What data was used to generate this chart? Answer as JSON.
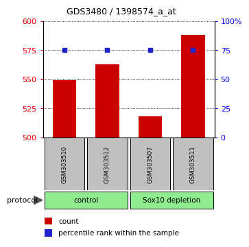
{
  "title": "GDS3480 / 1398574_a_at",
  "samples": [
    "GSM303510",
    "GSM303512",
    "GSM303507",
    "GSM303511"
  ],
  "bar_values": [
    549,
    563,
    518,
    588
  ],
  "percentile_values": [
    75,
    75,
    75,
    75
  ],
  "bar_color": "#cc0000",
  "dot_color": "#2222cc",
  "ylim_left": [
    500,
    600
  ],
  "ylim_right": [
    0,
    100
  ],
  "yticks_left": [
    500,
    525,
    550,
    575,
    600
  ],
  "yticks_right": [
    0,
    25,
    50,
    75,
    100
  ],
  "ytick_labels_right": [
    "0",
    "25",
    "50",
    "75",
    "100%"
  ],
  "groups": [
    {
      "label": "control",
      "indices": [
        0,
        1
      ]
    },
    {
      "label": "Sox10 depletion",
      "indices": [
        2,
        3
      ]
    }
  ],
  "group_color": "#90ee90",
  "sample_box_color": "#c0c0c0",
  "protocol_label": "protocol",
  "legend_count_label": "count",
  "legend_percentile_label": "percentile rank within the sample",
  "bar_width": 0.55,
  "fig_width": 3.4,
  "fig_height": 3.54
}
